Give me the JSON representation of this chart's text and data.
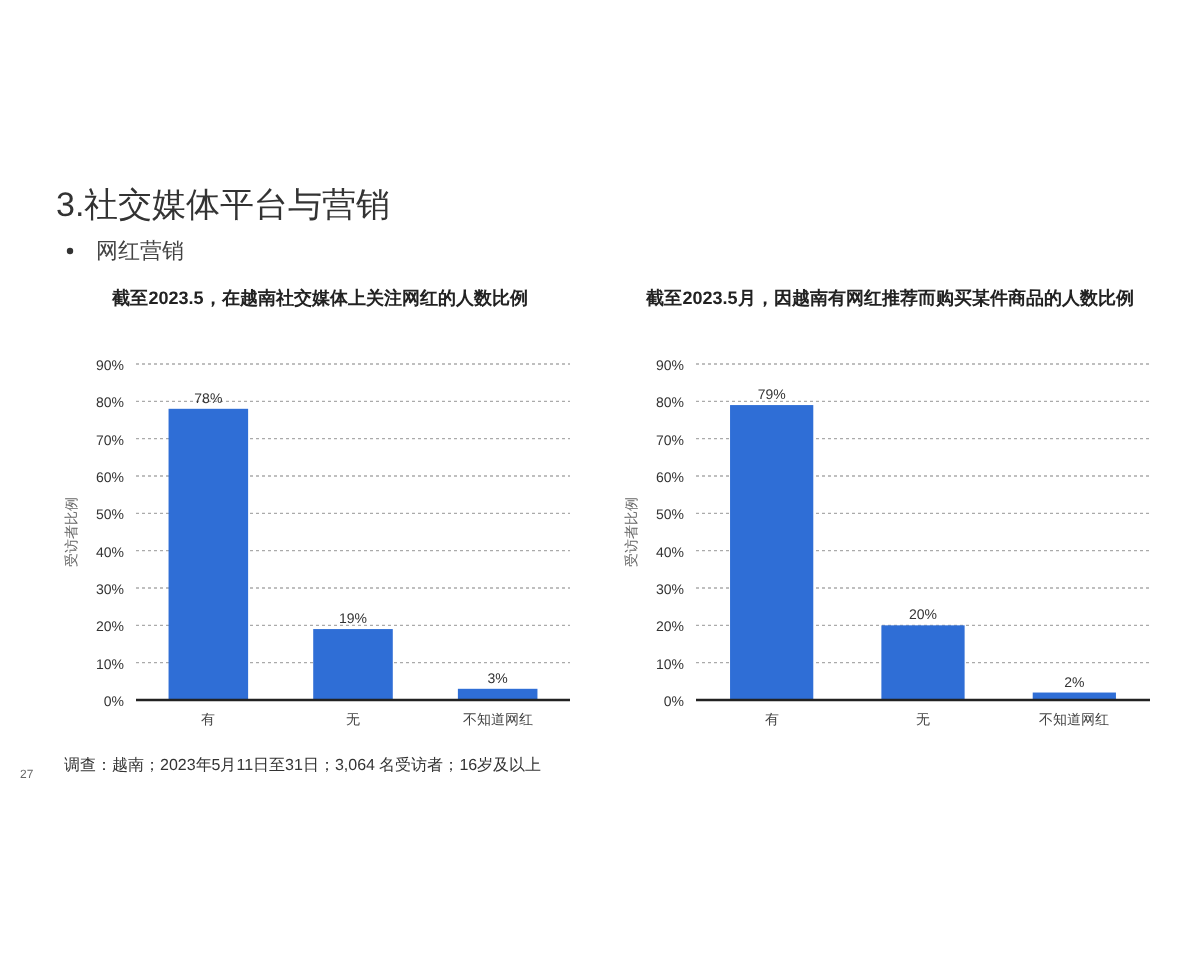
{
  "chart_data": [
    {
      "type": "other",
      "title": "3.社交媒体平台与营销",
      "subtitle": "网红营销",
      "annotations": [
        "调查：越南；2023年5月11日至31日；3,064 名受访者；16岁及以上",
        "27"
      ]
    },
    {
      "type": "bar",
      "title": "截至2023.5，在越南社交媒体上关注网红的人数比例",
      "ylabel": "受访者比例",
      "categories": [
        "有",
        "无",
        "不知道网红"
      ],
      "values": [
        78,
        19,
        3
      ],
      "color": "#2f6ed6",
      "value_labels": [
        "78%",
        "19%",
        "3%"
      ],
      "ylim": [
        0,
        90
      ],
      "yticks": [
        {
          "value": 0,
          "label": "0%"
        },
        {
          "value": 10,
          "label": "10%"
        },
        {
          "value": 20,
          "label": "20%"
        },
        {
          "value": 30,
          "label": "30%"
        },
        {
          "value": 40,
          "label": "40%"
        },
        {
          "value": 50,
          "label": "50%"
        },
        {
          "value": 60,
          "label": "60%"
        },
        {
          "value": 70,
          "label": "70%"
        },
        {
          "value": 80,
          "label": "80%"
        },
        {
          "value": 90,
          "label": "90%"
        }
      ],
      "grid": "y"
    },
    {
      "type": "bar",
      "title": "截至2023.5月，因越南有网红推荐而购买某件商品的人数比例",
      "ylabel": "受访者比例",
      "categories": [
        "有",
        "无",
        "不知道网红"
      ],
      "values": [
        79,
        20,
        2
      ],
      "color": "#2f6ed6",
      "value_labels": [
        "79%",
        "20%",
        "2%"
      ],
      "ylim": [
        0,
        90
      ],
      "yticks": [
        {
          "value": 0,
          "label": "0%"
        },
        {
          "value": 10,
          "label": "10%"
        },
        {
          "value": 20,
          "label": "20%"
        },
        {
          "value": 30,
          "label": "30%"
        },
        {
          "value": 40,
          "label": "40%"
        },
        {
          "value": 50,
          "label": "50%"
        },
        {
          "value": 60,
          "label": "60%"
        },
        {
          "value": 70,
          "label": "70%"
        },
        {
          "value": 80,
          "label": "80%"
        },
        {
          "value": 90,
          "label": "90%"
        }
      ],
      "grid": "y"
    }
  ]
}
